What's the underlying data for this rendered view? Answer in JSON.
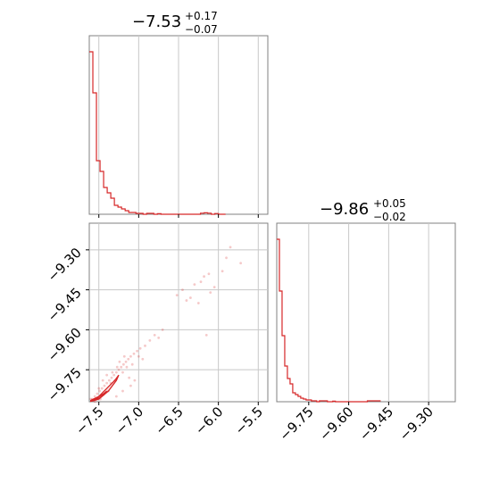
{
  "chart_data": {
    "type": "corner",
    "grid": true,
    "color": "#d62728",
    "params": [
      {
        "title_main": "−7.53",
        "title_upper": "+0.17",
        "title_lower": "−0.07",
        "range": [
          -7.62,
          -5.38
        ],
        "ticks": [
          {
            "value": -7.5,
            "label": "−7.5"
          },
          {
            "value": -7.0,
            "label": "−7.0"
          },
          {
            "value": -6.5,
            "label": "−6.5"
          },
          {
            "value": -6.0,
            "label": "−6.0"
          },
          {
            "value": -5.5,
            "label": "−5.5"
          }
        ]
      },
      {
        "title_main": "−9.86",
        "title_upper": "+0.05",
        "title_lower": "−0.02",
        "range": [
          -9.87,
          -9.2
        ],
        "ticks": [
          {
            "value": -9.75,
            "label": "−9.75"
          },
          {
            "value": -9.6,
            "label": "−9.60"
          },
          {
            "value": -9.45,
            "label": "−9.45"
          },
          {
            "value": -9.3,
            "label": "−9.30"
          }
        ]
      }
    ],
    "hist_1": {
      "bin_edges": [
        -7.62,
        -7.575,
        -7.53,
        -7.485,
        -7.44,
        -7.395,
        -7.35,
        -7.305,
        -7.26,
        -7.215,
        -7.17,
        -7.125,
        -7.08,
        -7.035,
        -6.99,
        -6.945,
        -6.9,
        -6.855,
        -6.81,
        -6.765,
        -6.72,
        -6.675,
        -6.63,
        -6.585,
        -6.54,
        -6.495,
        -6.45,
        -6.405,
        -6.36,
        -6.315,
        -6.27,
        -6.225,
        -6.18,
        -6.135,
        -6.09,
        -6.045,
        -6.0,
        -5.955,
        -5.91
      ],
      "counts": [
        0.91,
        0.68,
        0.3,
        0.24,
        0.15,
        0.12,
        0.09,
        0.05,
        0.04,
        0.03,
        0.02,
        0.01,
        0.01,
        0.005,
        0.005,
        0.0,
        0.005,
        0.005,
        0.0,
        0.003,
        0.0,
        0.0,
        0.0,
        0.0,
        0.0,
        0.0,
        0.0,
        0.0,
        0.0,
        0.0,
        0.0,
        0.006,
        0.008,
        0.006,
        0.0,
        0.004,
        0.0,
        0.0
      ]
    },
    "hist_2": {
      "bin_edges": [
        -9.87,
        -9.86,
        -9.85,
        -9.84,
        -9.83,
        -9.82,
        -9.81,
        -9.8,
        -9.79,
        -9.78,
        -9.77,
        -9.76,
        -9.75,
        -9.74,
        -9.73,
        -9.72,
        -9.71,
        -9.7,
        -9.69,
        -9.68,
        -9.67,
        -9.66,
        -9.65,
        -9.64,
        -9.63,
        -9.62,
        -9.61,
        -9.6,
        -9.59,
        -9.58,
        -9.57,
        -9.56,
        -9.55,
        -9.54,
        -9.53,
        -9.52,
        -9.51,
        -9.5,
        -9.49,
        -9.48
      ],
      "counts": [
        0.91,
        0.62,
        0.37,
        0.2,
        0.13,
        0.1,
        0.05,
        0.04,
        0.03,
        0.02,
        0.015,
        0.01,
        0.01,
        0.005,
        0.005,
        0.0,
        0.005,
        0.005,
        0.005,
        0.0,
        0.0,
        0.003,
        0.0,
        0.0,
        0.0,
        0.0,
        0.0,
        0.0,
        0.0,
        0.0,
        0.0,
        0.0,
        0.0,
        0.0,
        0.005,
        0.005,
        0.005,
        0.005,
        0.005
      ]
    },
    "scatter": [
      [
        -7.58,
        -9.86
      ],
      [
        -7.55,
        -9.85
      ],
      [
        -7.52,
        -9.84
      ],
      [
        -7.49,
        -9.83
      ],
      [
        -7.46,
        -9.82
      ],
      [
        -7.43,
        -9.81
      ],
      [
        -7.4,
        -9.8
      ],
      [
        -7.37,
        -9.79
      ],
      [
        -7.34,
        -9.78
      ],
      [
        -7.31,
        -9.77
      ],
      [
        -7.28,
        -9.76
      ],
      [
        -7.25,
        -9.75
      ],
      [
        -7.22,
        -9.74
      ],
      [
        -7.19,
        -9.73
      ],
      [
        -7.16,
        -9.72
      ],
      [
        -7.13,
        -9.71
      ],
      [
        -7.1,
        -9.7
      ],
      [
        -7.06,
        -9.69
      ],
      [
        -7.02,
        -9.68
      ],
      [
        -6.98,
        -9.67
      ],
      [
        -6.92,
        -9.66
      ],
      [
        -6.86,
        -9.64
      ],
      [
        -6.8,
        -9.62
      ],
      [
        -6.75,
        -9.63
      ],
      [
        -6.7,
        -9.6
      ],
      [
        -7.45,
        -9.79
      ],
      [
        -7.4,
        -9.77
      ],
      [
        -7.35,
        -9.8
      ],
      [
        -7.3,
        -9.79
      ],
      [
        -7.27,
        -9.74
      ],
      [
        -7.2,
        -9.76
      ],
      [
        -7.15,
        -9.74
      ],
      [
        -7.12,
        -9.78
      ],
      [
        -7.5,
        -9.82
      ],
      [
        -7.38,
        -9.83
      ],
      [
        -7.33,
        -9.76
      ],
      [
        -7.24,
        -9.72
      ],
      [
        -7.18,
        -9.7
      ],
      [
        -7.08,
        -9.73
      ],
      [
        -7.0,
        -9.7
      ],
      [
        -6.95,
        -9.71
      ],
      [
        -6.52,
        -9.47
      ],
      [
        -6.45,
        -9.45
      ],
      [
        -6.4,
        -9.49
      ],
      [
        -6.3,
        -9.43
      ],
      [
        -6.22,
        -9.42
      ],
      [
        -6.18,
        -9.4
      ],
      [
        -6.12,
        -9.39
      ],
      [
        -6.1,
        -9.46
      ],
      [
        -6.05,
        -9.44
      ],
      [
        -5.95,
        -9.38
      ],
      [
        -5.9,
        -9.33
      ],
      [
        -5.85,
        -9.29
      ],
      [
        -5.72,
        -9.35
      ],
      [
        -6.15,
        -9.62
      ],
      [
        -6.35,
        -9.48
      ],
      [
        -6.25,
        -9.5
      ],
      [
        -7.2,
        -9.83
      ],
      [
        -7.05,
        -9.79
      ],
      [
        -7.1,
        -9.81
      ],
      [
        -7.28,
        -9.85
      ],
      [
        -7.55,
        -9.87
      ],
      [
        -7.6,
        -9.86
      ],
      [
        -7.48,
        -9.86
      ]
    ],
    "contours": [
      [
        [
          -7.6,
          -9.865
        ],
        [
          -7.5,
          -9.85
        ],
        [
          -7.4,
          -9.82
        ],
        [
          -7.3,
          -9.79
        ],
        [
          -7.25,
          -9.77
        ],
        [
          -7.28,
          -9.79
        ],
        [
          -7.38,
          -9.83
        ],
        [
          -7.5,
          -9.86
        ],
        [
          -7.6,
          -9.868
        ]
      ],
      [
        [
          -7.6,
          -9.865
        ],
        [
          -7.52,
          -9.855
        ],
        [
          -7.44,
          -9.84
        ],
        [
          -7.4,
          -9.83
        ],
        [
          -7.44,
          -9.845
        ],
        [
          -7.52,
          -9.862
        ],
        [
          -7.6,
          -9.868
        ]
      ],
      [
        [
          -7.6,
          -9.866
        ],
        [
          -7.55,
          -9.86
        ],
        [
          -7.5,
          -9.856
        ],
        [
          -7.55,
          -9.864
        ],
        [
          -7.6,
          -9.868
        ]
      ]
    ]
  }
}
